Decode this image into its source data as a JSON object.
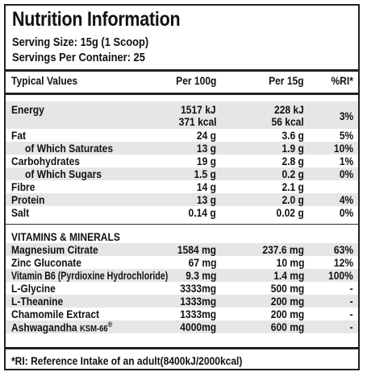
{
  "title": "Nutrition Information",
  "serving_size": "Serving Size: 15g (1 Scoop)",
  "servings_per_container": "Servings Per Container: 25",
  "header": {
    "name": "Typical Values",
    "per100": "Per 100g",
    "per15": "Per 15g",
    "ri": "%RI*"
  },
  "energy": {
    "name": "Energy",
    "per100_kj": "1517 kJ",
    "per100_kcal": "371 kcal",
    "per15_kj": "228 kJ",
    "per15_kcal": "56 kcal",
    "ri": "3%"
  },
  "nutrients": [
    {
      "name": "Fat",
      "per100": "24 g",
      "per15": "3.6 g",
      "ri": "5%"
    },
    {
      "name": "of Which Saturates",
      "per100": "13 g",
      "per15": "1.9 g",
      "ri": "10%"
    },
    {
      "name": "Carbohydrates",
      "per100": "19 g",
      "per15": "2.8 g",
      "ri": "1%"
    },
    {
      "name": "of Which Sugars",
      "per100": "1.5 g",
      "per15": "0.2 g",
      "ri": "0%"
    },
    {
      "name": "Fibre",
      "per100": "14 g",
      "per15": "2.1 g",
      "ri": ""
    },
    {
      "name": "Protein",
      "per100": "13 g",
      "per15": "2.0 g",
      "ri": "4%"
    },
    {
      "name": "Salt",
      "per100": "0.14 g",
      "per15": "0.02 g",
      "ri": "0%"
    }
  ],
  "vitamins_heading": "VITAMINS & MINERALS",
  "vitamins": [
    {
      "name": "Magnesium Citrate",
      "per100": "1584 mg",
      "per15": "237.6 mg",
      "ri": "63%"
    },
    {
      "name": "Zinc Gluconate",
      "per100": "67 mg",
      "per15": "10 mg",
      "ri": "12%"
    },
    {
      "name": "Vitamin B6 (Pyrdioxine Hydrochloride)",
      "per100": "9.3 mg",
      "per15": "1.4 mg",
      "ri": "100%"
    },
    {
      "name": "L-Glycine",
      "per100": "3333mg",
      "per15": "500 mg",
      "ri": "-"
    },
    {
      "name": "L-Theanine",
      "per100": "1333mg",
      "per15": "200 mg",
      "ri": "-"
    },
    {
      "name": "Chamomile Extract",
      "per100": "1333mg",
      "per15": "200 mg",
      "ri": "-"
    },
    {
      "name": "Ashwagandha",
      "per100": "4000mg",
      "per15": "600 mg",
      "ri": "-"
    }
  ],
  "ashwagandha_brand": "KSM-66",
  "ashwagandha_mark": "®",
  "footnote": "*RI: Reference Intake of an adult(8400kJ/2000kcal)"
}
